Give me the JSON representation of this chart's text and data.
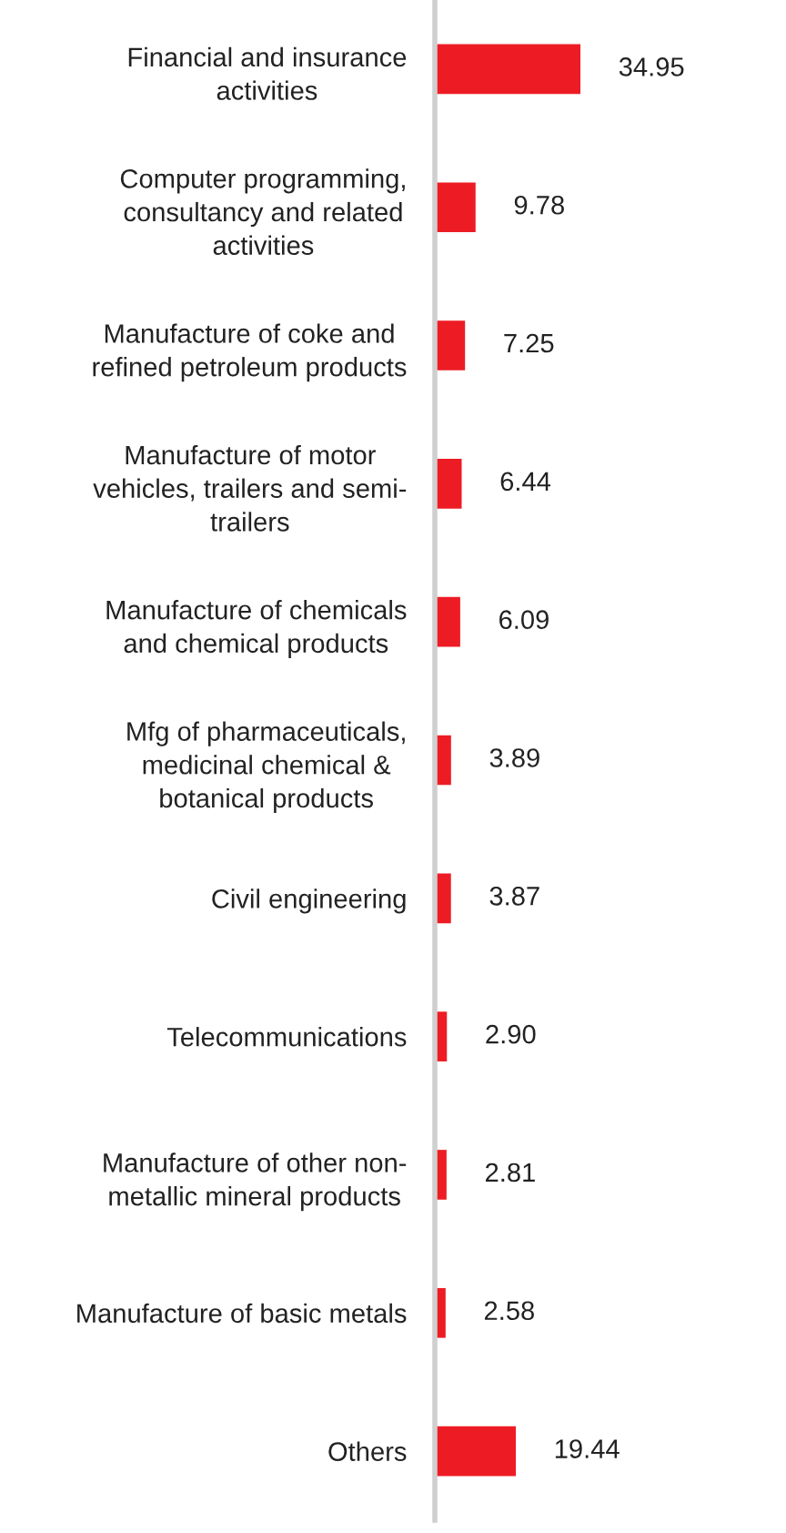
{
  "chart_data": {
    "type": "bar",
    "orientation": "horizontal",
    "categories": [
      "Financial and insurance\nactivities",
      "Computer programming,\nconsultancy and related\nactivities",
      "Manufacture of coke and\nrefined petroleum products",
      "Manufacture of motor\nvehicles, trailers and semi-\ntrailers",
      "Manufacture of chemicals\nand chemical products",
      "Mfg of pharmaceuticals,\nmedicinal chemical &\nbotanical products",
      "Civil engineering",
      "Telecommunications",
      "Manufacture of other non-\nmetallic mineral products",
      "Manufacture of basic metals",
      "Others"
    ],
    "values": [
      34.95,
      9.78,
      7.25,
      6.44,
      6.09,
      3.89,
      3.87,
      2.9,
      2.81,
      2.58,
      19.44
    ],
    "value_labels": [
      "34.95",
      "9.78",
      "7.25",
      "6.44",
      "6.09",
      "3.89",
      "3.87",
      "2.90",
      "2.81",
      "2.58",
      "19.44"
    ],
    "color": "#ed1c24",
    "tick_labels": "y"
  }
}
